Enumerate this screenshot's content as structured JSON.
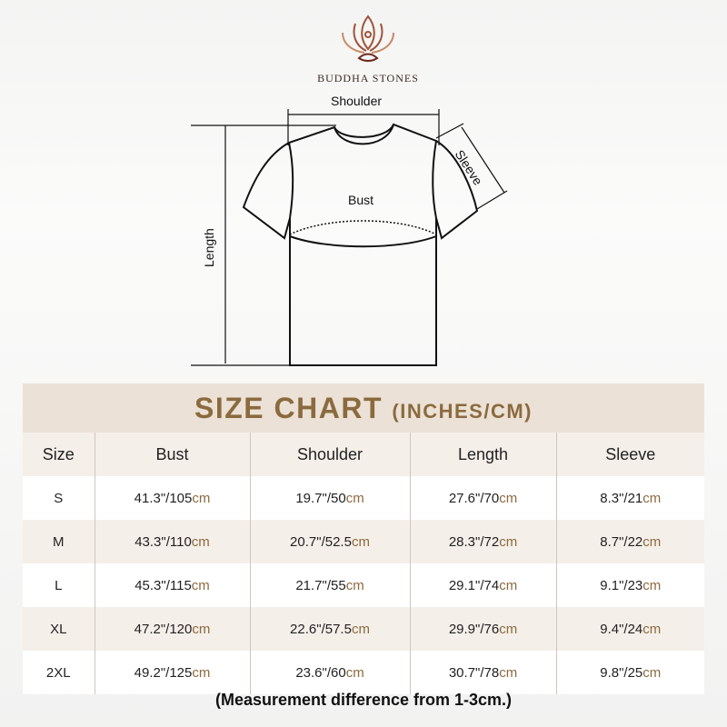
{
  "brand": {
    "name": "BUDDHA STONES",
    "logo_color": "#a0543a"
  },
  "diagram": {
    "shoulder": "Shoulder",
    "sleeve": "Sleeve",
    "bust": "Bust",
    "length": "Length"
  },
  "chart": {
    "title": "SIZE CHART",
    "unit": "(INCHES/CM)",
    "accent": "#8b6a3e",
    "headers": [
      "Size",
      "Bust",
      "Shoulder",
      "Length",
      "Sleeve"
    ],
    "rows": [
      {
        "size": "S",
        "cells": [
          [
            "41.3\"/105",
            "cm"
          ],
          [
            "19.7\"/50",
            "cm"
          ],
          [
            "27.6\"/70",
            "cm"
          ],
          [
            "8.3\"/21",
            "cm"
          ]
        ]
      },
      {
        "size": "M",
        "cells": [
          [
            "43.3\"/110",
            "cm"
          ],
          [
            "20.7\"/52.5",
            "cm"
          ],
          [
            "28.3\"/72",
            "cm"
          ],
          [
            "8.7\"/22",
            "cm"
          ]
        ]
      },
      {
        "size": "L",
        "cells": [
          [
            "45.3\"/115",
            "cm"
          ],
          [
            "21.7\"/55",
            "cm"
          ],
          [
            "29.1\"/74",
            "cm"
          ],
          [
            "9.1\"/23",
            "cm"
          ]
        ]
      },
      {
        "size": "XL",
        "cells": [
          [
            "47.2\"/120",
            "cm"
          ],
          [
            "22.6\"/57.5",
            "cm"
          ],
          [
            "29.9\"/76",
            "cm"
          ],
          [
            "9.4\"/24",
            "cm"
          ]
        ]
      },
      {
        "size": "2XL",
        "cells": [
          [
            "49.2\"/125",
            "cm"
          ],
          [
            "23.6\"/60",
            "cm"
          ],
          [
            "30.7\"/78",
            "cm"
          ],
          [
            "9.8\"/25",
            "cm"
          ]
        ]
      }
    ],
    "note": "(Measurement difference from 1-3cm.)"
  }
}
